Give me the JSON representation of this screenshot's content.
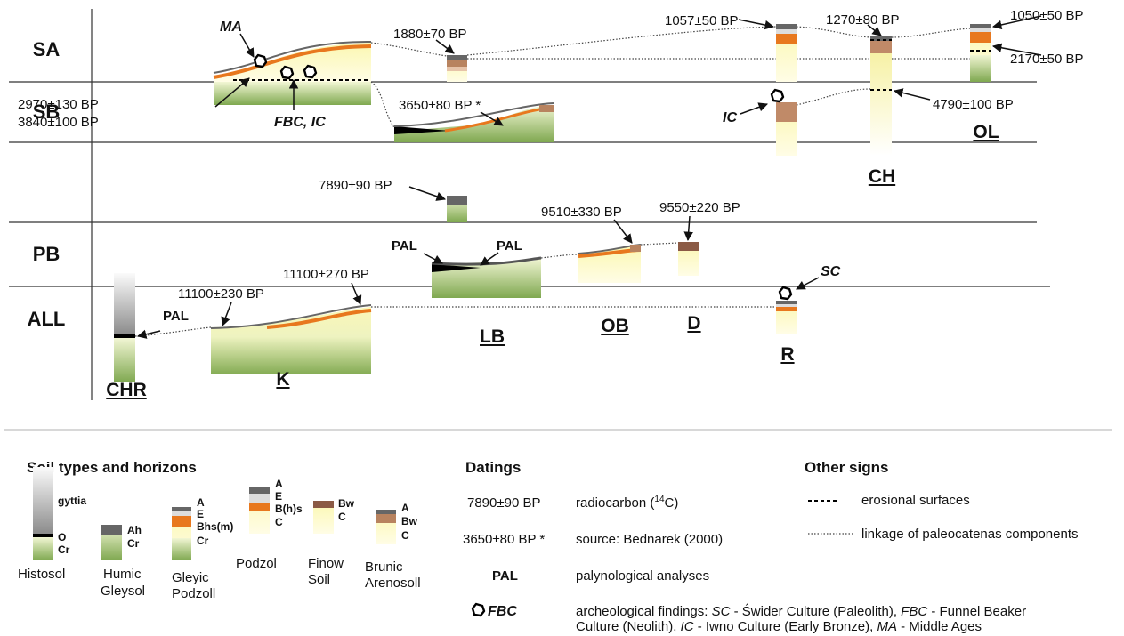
{
  "rows": [
    "SA",
    "SB",
    "PB",
    "ALL"
  ],
  "sites": [
    "CHR",
    "K",
    "LB",
    "OB",
    "D",
    "R",
    "CH",
    "OL"
  ],
  "datings": [
    "1880±70 BP",
    "1057±50 BP",
    "1270±80 BP",
    "1050±50 BP",
    "2170±50 BP",
    "2970±130 BP",
    "3840±100 BP",
    "3650±80 BP *",
    "4790±100 BP",
    "7890±90 BP",
    "9510±330 BP",
    "9550±220 BP",
    "11100±270 BP",
    "11100±230 BP"
  ],
  "annotations": [
    "MA",
    "FBC, IC",
    "IC",
    "SC",
    "PAL",
    "PAL",
    "PAL"
  ],
  "legend": {
    "soils": {
      "title": "Soil types and horizons",
      "items": [
        {
          "name": [
            "Histosol"
          ],
          "horizons": [
            "gyttia",
            "O",
            "Cr"
          ]
        },
        {
          "name": [
            "Humic",
            "Gleysol"
          ],
          "horizons": [
            "Ah",
            "Cr"
          ]
        },
        {
          "name": [
            "Gleyic",
            "Podzoll"
          ],
          "horizons": [
            "A",
            "E",
            "Bhs(m)",
            "Cr"
          ]
        },
        {
          "name": [
            "Podzol"
          ],
          "horizons": [
            "A",
            "E",
            "B(h)s",
            "C"
          ]
        },
        {
          "name": [
            "Finow",
            "Soil"
          ],
          "horizons": [
            "Bw",
            "C"
          ]
        },
        {
          "name": [
            "Brunic",
            "Arenosoll"
          ],
          "horizons": [
            "A",
            "Bw",
            "C"
          ]
        }
      ]
    },
    "datings": {
      "title": "Datings",
      "items": [
        {
          "sign": "7890±90 BP",
          "text": [
            "radiocarbon (",
            "14",
            "C)"
          ]
        },
        {
          "sign": "3650±80 BP *",
          "text": [
            "source: Bednarek (2000)"
          ]
        },
        {
          "sign": "PAL",
          "text": [
            "palynological analyses"
          ]
        },
        {
          "sign": "FBC",
          "lines": [
            [
              "archeological findings: ",
              "SC",
              " - Świder Culture (Paleolith), ",
              "FBC",
              " - Funnel Beaker"
            ],
            [
              "Culture (Neolith), ",
              "IC",
              " - Iwno Culture (Early Bronze), ",
              "MA",
              " - Middle Ages"
            ]
          ]
        }
      ]
    },
    "other": {
      "title": "Other signs",
      "items": [
        "erosional surfaces",
        "linkage of paleocatenas components"
      ]
    }
  }
}
